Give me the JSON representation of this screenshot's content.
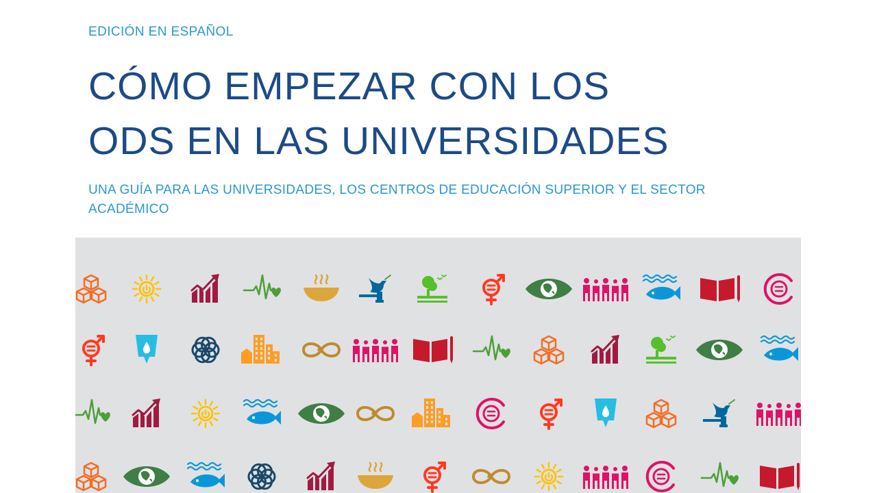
{
  "header": {
    "edition": "EDICIÓN EN ESPAÑOL",
    "title_line1": "CÓMO EMPEZAR CON LOS",
    "title_line2": "ODS EN LAS UNIVERSIDADES",
    "subtitle_line1": "UNA GUÍA PARA LAS UNIVERSIDADES, LOS CENTROS DE EDUCACIÓN SUPERIOR Y EL SECTOR",
    "subtitle_line2": "ACADÉMICO"
  },
  "icon_colors": {
    "cubes": "#f36d25",
    "sun": "#fcc30b",
    "growth": "#a21942",
    "heartbeat": "#4c9f38",
    "bowl": "#dda63a",
    "dove": "#00689d",
    "tree": "#56c02b",
    "gender": "#ff3a21",
    "eye": "#3f7e44",
    "people": "#dd1367",
    "fish": "#0a97d9",
    "book": "#c5192d",
    "equal": "#dd1367",
    "water": "#26bde2",
    "flower": "#19486a",
    "city": "#fd9d24",
    "infinity": "#bf8b2e",
    "power": "#fcc30b"
  },
  "icon_rows": [
    [
      "cubes-icon",
      "sun-icon",
      "growth-chart-icon",
      "heartbeat-icon",
      "bowl-icon",
      "dove-icon",
      "tree-icon",
      "gender-icon",
      "eye-globe-icon",
      "people-icon",
      "fish-icon",
      "book-icon",
      "equal-icon"
    ],
    [
      "gender-icon",
      "water-drop-icon",
      "flower-icon",
      "city-icon",
      "infinity-icon",
      "people-icon",
      "book-icon",
      "heartbeat-icon",
      "cubes-icon",
      "growth-chart-icon",
      "tree-icon",
      "eye-globe-icon",
      "fish-icon"
    ],
    [
      "heartbeat-icon",
      "growth-chart-icon",
      "sun-icon",
      "fish-icon",
      "eye-globe-icon",
      "infinity-icon",
      "city-icon",
      "equal-icon",
      "gender-icon",
      "water-drop-icon",
      "cubes-icon",
      "dove-icon",
      "people-icon"
    ],
    [
      "cubes-icon",
      "eye-globe-icon",
      "fish-icon",
      "flower-icon",
      "growth-chart-icon",
      "bowl-icon",
      "gender-icon",
      "infinity-icon",
      "power-icon",
      "people-icon",
      "equal-icon",
      "heartbeat-icon",
      "book-icon"
    ]
  ]
}
